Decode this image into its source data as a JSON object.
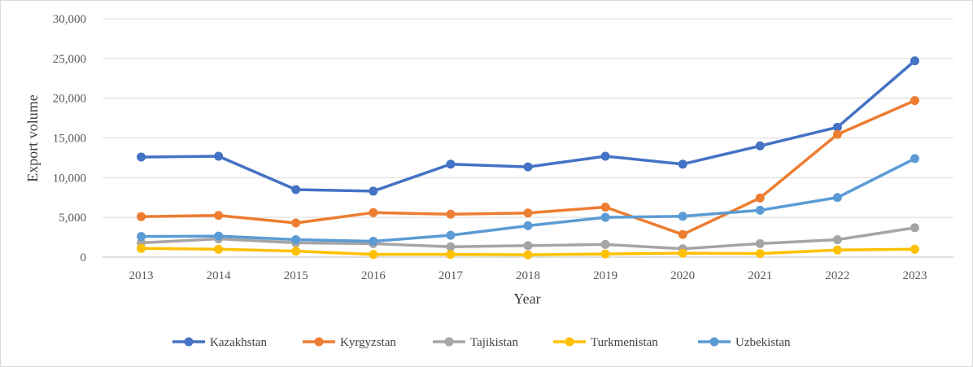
{
  "chart_data": {
    "type": "line",
    "title": "",
    "xlabel": "Year",
    "ylabel": "Export volume",
    "ylim": [
      0,
      30000
    ],
    "yticks": [
      0,
      5000,
      10000,
      15000,
      20000,
      25000,
      30000
    ],
    "ytick_labels": [
      "0",
      "5,000",
      "10,000",
      "15,000",
      "20,000",
      "25,000",
      "30,000"
    ],
    "categories": [
      "2013",
      "2014",
      "2015",
      "2016",
      "2017",
      "2018",
      "2019",
      "2020",
      "2021",
      "2022",
      "2023"
    ],
    "grid": "horizontal",
    "legend_position": "bottom",
    "series": [
      {
        "name": "Kazakhstan",
        "color": "#4472C4",
        "values": [
          12600,
          12700,
          8500,
          8300,
          11700,
          11350,
          12700,
          11700,
          14000,
          16350,
          24700
        ]
      },
      {
        "name": "Kyrgyzstan",
        "color": "#ED7D31",
        "values": [
          5100,
          5250,
          4300,
          5600,
          5400,
          5550,
          6300,
          2850,
          7450,
          15450,
          19700
        ]
      },
      {
        "name": "Tajikistan",
        "color": "#A5A5A5",
        "values": [
          1800,
          2300,
          1800,
          1700,
          1300,
          1450,
          1600,
          1050,
          1700,
          2200,
          3700
        ]
      },
      {
        "name": "Turkmenistan",
        "color": "#FFC000",
        "values": [
          1100,
          1000,
          750,
          350,
          350,
          300,
          400,
          500,
          450,
          900,
          1000
        ]
      },
      {
        "name": "Uzbekistan",
        "color": "#5B9BD5",
        "values": [
          2600,
          2650,
          2200,
          2000,
          2750,
          3950,
          5000,
          5150,
          5900,
          7500,
          12400
        ]
      }
    ]
  }
}
